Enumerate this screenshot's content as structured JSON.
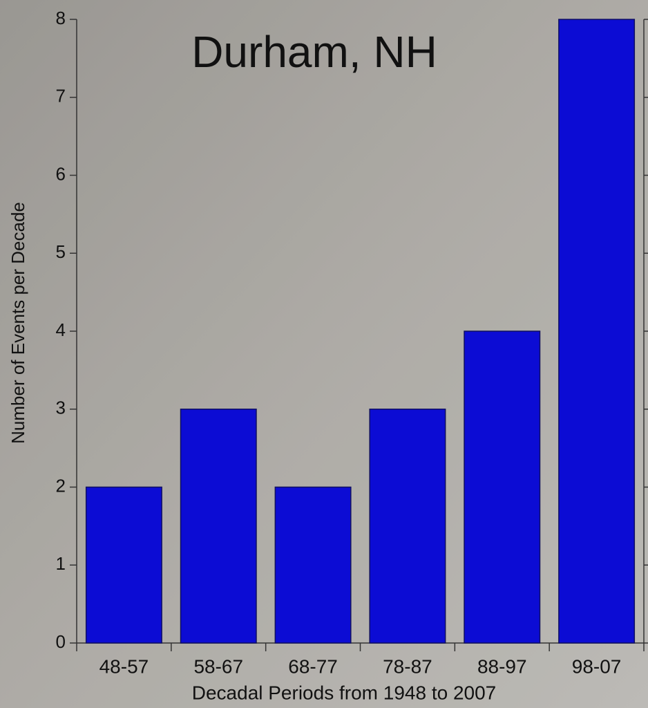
{
  "chart_data": {
    "type": "bar",
    "title": "Durham, NH",
    "x_label": "Decadal Periods from 1948 to 2007",
    "y_label": "Number of Events per Decade",
    "categories": [
      "48-57",
      "58-67",
      "68-77",
      "78-87",
      "88-97",
      "98-07"
    ],
    "values": [
      2,
      3,
      2,
      3,
      4,
      8
    ],
    "color": "#0c0cd4",
    "ylim": [
      0,
      8
    ],
    "yticks": [
      0,
      1,
      2,
      3,
      4,
      5,
      6,
      7,
      8
    ],
    "grid": false
  }
}
